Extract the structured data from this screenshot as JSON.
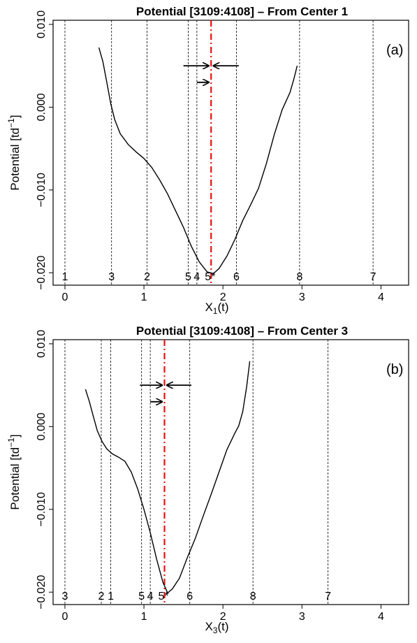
{
  "chart_data": [
    {
      "type": "line",
      "title": "Potential [3109:4108] – From Center 1",
      "panel_tag": "(a)",
      "xlabel_main": "X",
      "xlabel_sub": "1",
      "xlabel_tail": "(t)",
      "ylabel_main": "Potential [td",
      "ylabel_sup": "−1",
      "ylabel_tail": "]",
      "xlim": [
        -0.15,
        4.35
      ],
      "ylim": [
        -0.0215,
        0.0105
      ],
      "x_ticks": [
        0,
        1,
        2,
        3,
        4
      ],
      "x_tick_labels": [
        "0",
        "1",
        "2",
        "3",
        "4"
      ],
      "y_ticks": [
        -0.02,
        -0.01,
        0.0,
        0.01
      ],
      "y_tick_labels": [
        "−0.020",
        "−0.010",
        "0.000",
        "0.010"
      ],
      "centers": [
        {
          "label": "1",
          "x": 0.0
        },
        {
          "label": "3",
          "x": 0.59
        },
        {
          "label": "2",
          "x": 1.04
        },
        {
          "label": "5",
          "x": 1.56
        },
        {
          "label": "4",
          "x": 1.67
        },
        {
          "label": "5*",
          "x": 1.85
        },
        {
          "label": "6",
          "x": 2.17
        },
        {
          "label": "8",
          "x": 2.97
        },
        {
          "label": "7",
          "x": 3.9
        }
      ],
      "minimum_x": 1.85,
      "curve": {
        "x": [
          0.43,
          0.48,
          0.53,
          0.58,
          0.63,
          0.7,
          0.8,
          0.9,
          1.0,
          1.1,
          1.2,
          1.3,
          1.4,
          1.5,
          1.6,
          1.7,
          1.8,
          1.88,
          1.95,
          2.05,
          2.15,
          2.25,
          2.35,
          2.45,
          2.55,
          2.65,
          2.75,
          2.85,
          2.9,
          2.94
        ],
        "y": [
          0.0072,
          0.0055,
          0.003,
          0.0004,
          -0.0015,
          -0.0032,
          -0.0045,
          -0.0054,
          -0.0062,
          -0.0073,
          -0.0088,
          -0.0105,
          -0.0125,
          -0.0145,
          -0.0168,
          -0.0187,
          -0.0199,
          -0.0201,
          -0.0195,
          -0.018,
          -0.016,
          -0.0137,
          -0.0118,
          -0.0098,
          -0.0068,
          -0.0033,
          -0.0003,
          0.0018,
          0.0035,
          0.005
        ]
      },
      "arrow_right_upper": {
        "from": 1.5,
        "to": 1.82,
        "y": 0.005
      },
      "arrow_left_upper": {
        "from": 2.2,
        "to": 1.88,
        "y": 0.005
      },
      "arrow_right_lower": {
        "from": 1.67,
        "to": 1.82,
        "y": 0.003
      },
      "colors": {
        "curve": "#000000",
        "minimum_line": "#e8110f",
        "center_lines": "#000000"
      }
    },
    {
      "type": "line",
      "title": "Potential [3109:4108] – From Center 3",
      "panel_tag": "(b)",
      "xlabel_main": "X",
      "xlabel_sub": "3",
      "xlabel_tail": "(t)",
      "ylabel_main": "Potential [td",
      "ylabel_sup": "−1",
      "ylabel_tail": "]",
      "xlim": [
        -0.15,
        4.35
      ],
      "ylim": [
        -0.0215,
        0.0105
      ],
      "x_ticks": [
        0,
        1,
        2,
        3,
        4
      ],
      "x_tick_labels": [
        "0",
        "1",
        "2",
        "3",
        "4"
      ],
      "y_ticks": [
        -0.02,
        -0.01,
        0.0,
        0.01
      ],
      "y_tick_labels": [
        "−0.020",
        "−0.010",
        "0.000",
        "0.010"
      ],
      "centers": [
        {
          "label": "3",
          "x": 0.0
        },
        {
          "label": "2",
          "x": 0.46
        },
        {
          "label": "1",
          "x": 0.58
        },
        {
          "label": "5",
          "x": 0.97
        },
        {
          "label": "4",
          "x": 1.08
        },
        {
          "label": "5*",
          "x": 1.26
        },
        {
          "label": "6",
          "x": 1.58
        },
        {
          "label": "8",
          "x": 2.38
        },
        {
          "label": "7",
          "x": 3.33
        }
      ],
      "minimum_x": 1.26,
      "curve": {
        "x": [
          0.26,
          0.31,
          0.36,
          0.41,
          0.47,
          0.53,
          0.6,
          0.68,
          0.76,
          0.84,
          0.92,
          1.0,
          1.08,
          1.16,
          1.24,
          1.3,
          1.36,
          1.45,
          1.55,
          1.65,
          1.75,
          1.85,
          1.95,
          2.05,
          2.15,
          2.2,
          2.25,
          2.3,
          2.34
        ],
        "y": [
          0.0045,
          0.003,
          0.0012,
          -0.0005,
          -0.0018,
          -0.0027,
          -0.0033,
          -0.0037,
          -0.0042,
          -0.0055,
          -0.0075,
          -0.01,
          -0.0128,
          -0.016,
          -0.0188,
          -0.0201,
          -0.0196,
          -0.0183,
          -0.0158,
          -0.0135,
          -0.0108,
          -0.0082,
          -0.0055,
          -0.0028,
          -0.0008,
          0.0001,
          0.0018,
          0.0048,
          0.0079
        ]
      },
      "arrow_right_upper": {
        "from": 0.95,
        "to": 1.23,
        "y": 0.005
      },
      "arrow_left_upper": {
        "from": 1.6,
        "to": 1.29,
        "y": 0.005
      },
      "arrow_right_lower": {
        "from": 1.08,
        "to": 1.23,
        "y": 0.003
      },
      "colors": {
        "curve": "#000000",
        "minimum_line": "#e8110f",
        "center_lines": "#000000"
      }
    }
  ]
}
